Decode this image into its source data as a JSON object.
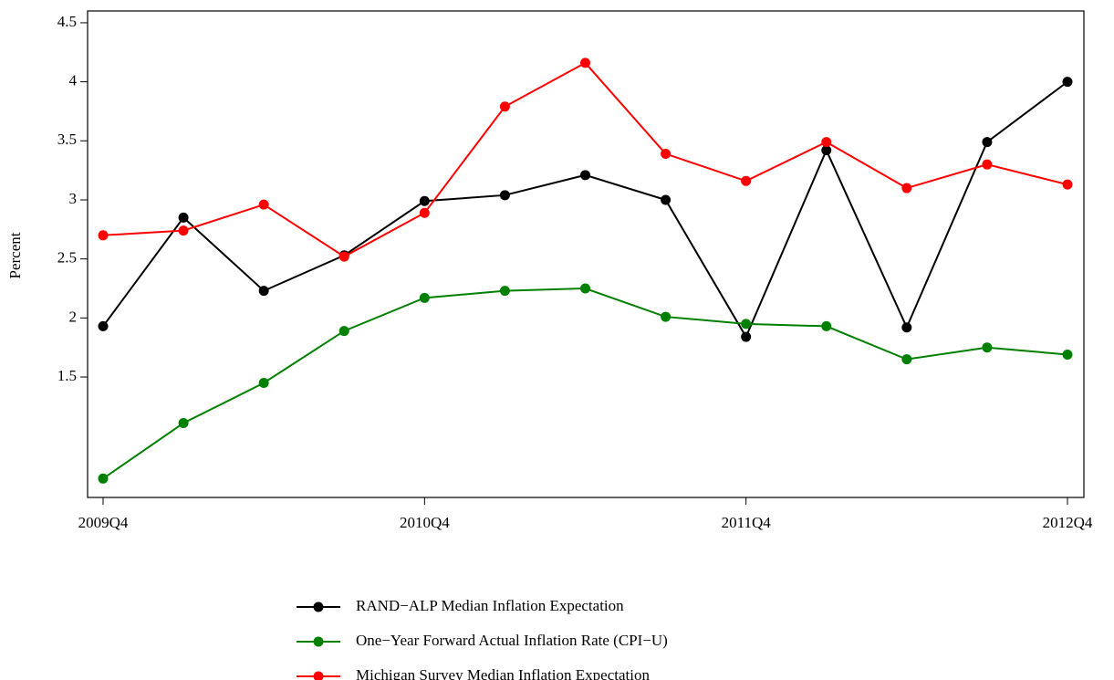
{
  "chart_data": {
    "type": "line",
    "y_label": "Percent",
    "categories": [
      "2009Q4",
      null,
      null,
      null,
      "2010Q4",
      null,
      null,
      null,
      "2011Q4",
      null,
      null,
      null,
      "2012Q4"
    ],
    "series": [
      {
        "name": "RAND−ALP Median Inflation Expectation",
        "color": "#000000",
        "values": [
          1.93,
          2.85,
          2.23,
          2.53,
          2.99,
          3.04,
          3.21,
          3.0,
          1.84,
          3.42,
          1.92,
          3.49,
          4.0
        ]
      },
      {
        "name": "One−Year Forward Actual Inflation Rate (CPI−U)",
        "color": "#008000",
        "values": [
          0.64,
          1.11,
          1.45,
          1.89,
          2.17,
          2.23,
          2.25,
          2.01,
          1.95,
          1.93,
          1.65,
          1.75,
          1.69
        ]
      },
      {
        "name": "Michigan Survey Median Inflation Expectation",
        "color": "#ff0000",
        "values": [
          2.7,
          2.74,
          2.96,
          2.52,
          2.89,
          3.79,
          4.16,
          3.39,
          3.16,
          3.49,
          3.1,
          3.3,
          3.13
        ]
      }
    ],
    "ylim": [
      0.48,
      4.6
    ],
    "yticks": [
      1.5,
      2,
      2.5,
      3,
      3.5,
      4,
      4.5
    ],
    "grid": false,
    "legend": "bottom"
  }
}
